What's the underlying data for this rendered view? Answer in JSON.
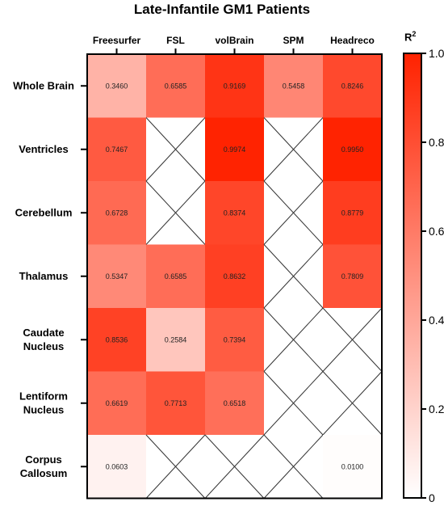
{
  "chart_data": {
    "type": "heatmap",
    "title": "Late-Infantile GM1 Patients",
    "columns": [
      "Freesurfer",
      "FSL",
      "volBrain",
      "SPM",
      "Headreco"
    ],
    "rows": [
      "Whole Brain",
      "Ventricles",
      "Cerebellum",
      "Thalamus",
      "Caudate Nucleus",
      "Lentiform Nucleus",
      "Corpus Callosum"
    ],
    "values": [
      [
        "0.3460",
        "0.6585",
        "0.9169",
        "0.5458",
        "0.8246"
      ],
      [
        "0.7467",
        null,
        "0.9974",
        null,
        "0.9950"
      ],
      [
        "0.6728",
        null,
        "0.8374",
        null,
        "0.8779"
      ],
      [
        "0.5347",
        "0.6585",
        "0.8632",
        null,
        "0.7809"
      ],
      [
        "0.8536",
        "0.2584",
        "0.7394",
        null,
        null
      ],
      [
        "0.6619",
        "0.7713",
        "0.6518",
        null,
        null
      ],
      [
        "0.0603",
        null,
        null,
        null,
        "0.0100"
      ]
    ],
    "missing_marker": "cross",
    "colorbar": {
      "label": "R",
      "label_superscript": "2",
      "range": [
        0,
        1
      ],
      "ticks": [
        "0",
        "0.2",
        "0.4",
        "0.6",
        "0.8",
        "1.0"
      ],
      "low_color": "#ffffff",
      "high_color": "#ff2200"
    }
  }
}
